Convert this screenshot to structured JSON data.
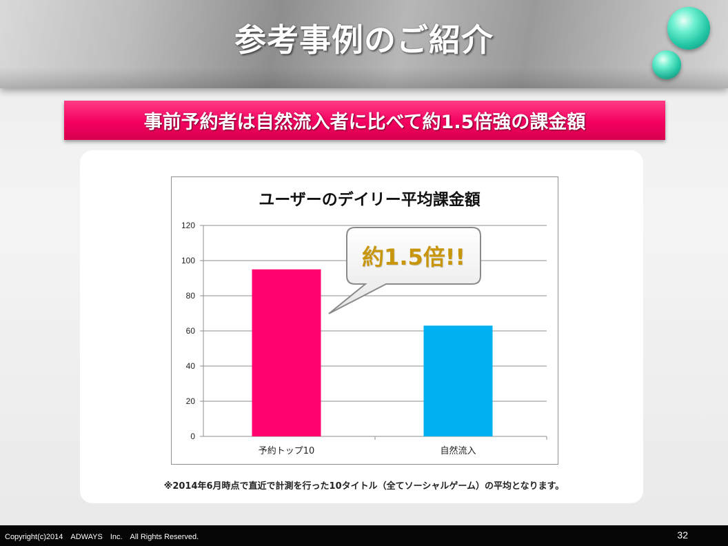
{
  "page": {
    "title": "参考事例のご紹介",
    "banner": "事前予約者は自然流入者に比べて約1.5倍強の課金額",
    "footnote": "※2014年6月時点で直近で計測を行った10タイトル（全てソーシャルゲーム）の平均となります。",
    "callout": "約1.5倍!!",
    "copyright": "Copyright(c)2014　ADWAYS　Inc.　All Rights Reserved.",
    "page_number": "32"
  },
  "colors": {
    "accent_pink": "#f4005f",
    "bar_pink": "#ff006e",
    "bar_blue": "#00b0f0",
    "orb": "#23c7a5",
    "callout_text": "#c8960c"
  },
  "chart_data": {
    "type": "bar",
    "title": "ユーザーのデイリー平均課金額",
    "categories": [
      "予約トップ10",
      "自然流入"
    ],
    "values": [
      95,
      63
    ],
    "colors": [
      "#ff006e",
      "#00b0f0"
    ],
    "xlabel": "",
    "ylabel": "",
    "ylim": [
      0,
      120
    ],
    "yticks": [
      0,
      20,
      40,
      60,
      80,
      100,
      120
    ],
    "grid": true,
    "legend": "none"
  }
}
